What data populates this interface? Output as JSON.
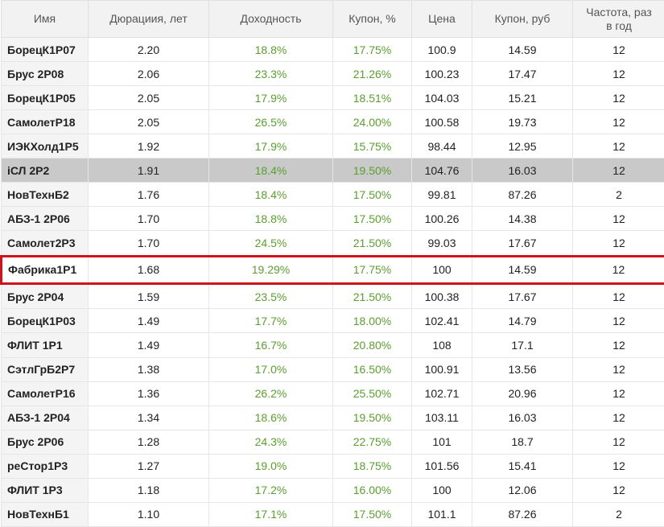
{
  "table": {
    "headers": [
      "Имя",
      "Дюрациия, лет",
      "Доходность",
      "Купон, %",
      "Цена",
      "Купон, руб",
      "Частота, раз в год"
    ],
    "rows": [
      [
        "БорецК1Р07",
        "2.20",
        "18.8%",
        "17.75%",
        "100.9",
        "14.59",
        "12"
      ],
      [
        "Брус 2Р08",
        "2.06",
        "23.3%",
        "21.26%",
        "100.23",
        "17.47",
        "12"
      ],
      [
        "БорецК1Р05",
        "2.05",
        "17.9%",
        "18.51%",
        "104.03",
        "15.21",
        "12"
      ],
      [
        "СамолетР18",
        "2.05",
        "26.5%",
        "24.00%",
        "100.58",
        "19.73",
        "12"
      ],
      [
        "ИЭКХолд1Р5",
        "1.92",
        "17.9%",
        "15.75%",
        "98.44",
        "12.95",
        "12"
      ],
      [
        "iСЛ 2Р2",
        "1.91",
        "18.4%",
        "19.50%",
        "104.76",
        "16.03",
        "12"
      ],
      [
        "НовТехнБ2",
        "1.76",
        "18.4%",
        "17.50%",
        "99.81",
        "87.26",
        "2"
      ],
      [
        "АБЗ-1 2Р06",
        "1.70",
        "18.8%",
        "17.50%",
        "100.26",
        "14.38",
        "12"
      ],
      [
        "Самолет2Р3",
        "1.70",
        "24.5%",
        "21.50%",
        "99.03",
        "17.67",
        "12"
      ],
      [
        "Фабрика1Р1",
        "1.68",
        "19.29%",
        "17.75%",
        "100",
        "14.59",
        "12"
      ],
      [
        "Брус 2Р04",
        "1.59",
        "23.5%",
        "21.50%",
        "100.38",
        "17.67",
        "12"
      ],
      [
        "БорецК1Р03",
        "1.49",
        "17.7%",
        "18.00%",
        "102.41",
        "14.79",
        "12"
      ],
      [
        "ФЛИТ 1Р1",
        "1.49",
        "16.7%",
        "20.80%",
        "108",
        "17.1",
        "12"
      ],
      [
        "СэтлГрБ2Р7",
        "1.38",
        "17.0%",
        "16.50%",
        "100.91",
        "13.56",
        "12"
      ],
      [
        "СамолетР16",
        "1.36",
        "26.2%",
        "25.50%",
        "102.71",
        "20.96",
        "12"
      ],
      [
        "АБЗ-1 2Р04",
        "1.34",
        "18.6%",
        "19.50%",
        "103.11",
        "16.03",
        "12"
      ],
      [
        "Брус 2Р06",
        "1.28",
        "24.3%",
        "22.75%",
        "101",
        "18.7",
        "12"
      ],
      [
        "реСтор1Р3",
        "1.27",
        "19.0%",
        "18.75%",
        "101.56",
        "15.41",
        "12"
      ],
      [
        "ФЛИТ 1Р3",
        "1.18",
        "17.2%",
        "16.00%",
        "100",
        "12.06",
        "12"
      ],
      [
        "НовТехнБ1",
        "1.10",
        "17.1%",
        "17.50%",
        "101.1",
        "87.26",
        "2"
      ]
    ]
  }
}
